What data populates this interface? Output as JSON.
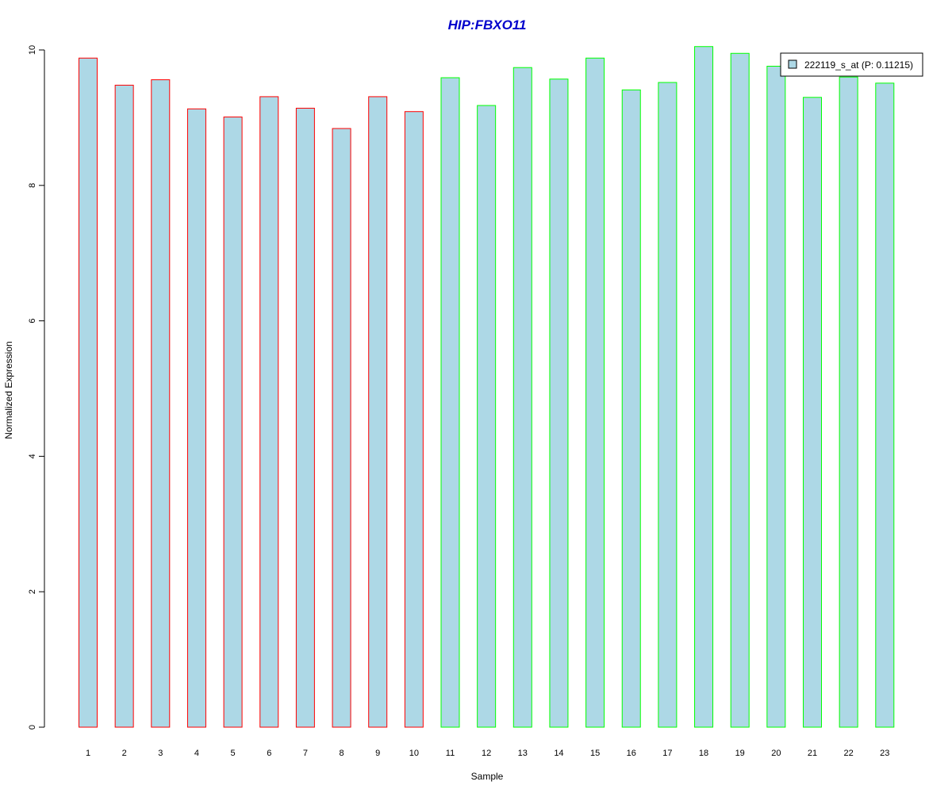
{
  "chart_data": {
    "type": "bar",
    "title": "HIP:FBXO11",
    "xlabel": "Sample",
    "ylabel": "Normalized Expression",
    "ylim": [
      0,
      10
    ],
    "yticks": [
      "0",
      "2",
      "4",
      "6",
      "8",
      "10"
    ],
    "categories": [
      "1",
      "2",
      "3",
      "4",
      "5",
      "6",
      "7",
      "8",
      "9",
      "10",
      "11",
      "12",
      "13",
      "14",
      "15",
      "16",
      "17",
      "18",
      "19",
      "20",
      "21",
      "22",
      "23"
    ],
    "series": [
      {
        "name": "222119_s_at (P: 0.11215)",
        "values": [
          9.88,
          9.48,
          9.56,
          9.13,
          9.01,
          9.31,
          9.14,
          8.84,
          9.31,
          9.09,
          9.59,
          9.18,
          9.74,
          9.57,
          9.88,
          9.41,
          9.52,
          10.05,
          9.95,
          9.76,
          9.3,
          9.6,
          9.51
        ]
      }
    ],
    "bar_fill": "#add8e6",
    "group_border_colors": [
      "#ff0000",
      "#ff0000",
      "#ff0000",
      "#ff0000",
      "#ff0000",
      "#ff0000",
      "#ff0000",
      "#ff0000",
      "#ff0000",
      "#ff0000",
      "#00ff00",
      "#00ff00",
      "#00ff00",
      "#00ff00",
      "#00ff00",
      "#00ff00",
      "#00ff00",
      "#00ff00",
      "#00ff00",
      "#00ff00",
      "#00ff00",
      "#00ff00",
      "#00ff00"
    ],
    "title_color": "#0000cc",
    "legend": {
      "position": "top-right",
      "label": "222119_s_at (P: 0.11215)"
    },
    "grid": false
  }
}
